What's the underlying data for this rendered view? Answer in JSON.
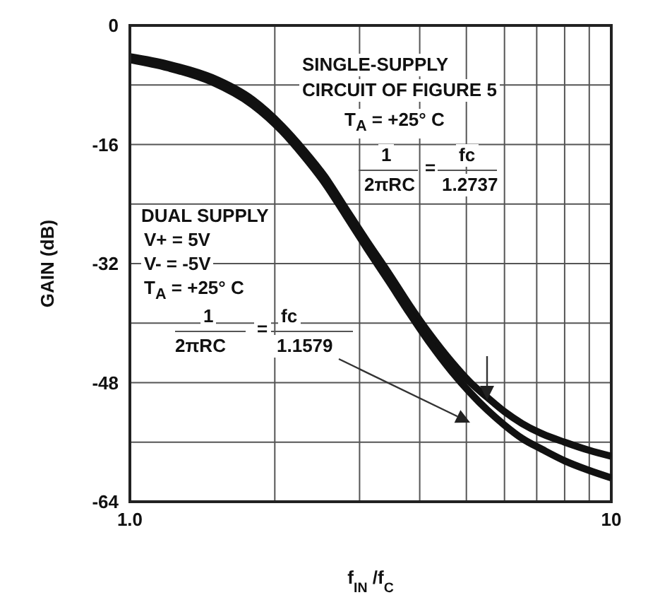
{
  "chart_data": {
    "type": "line",
    "xlabel": "f$_{IN}$/f$_{C}$",
    "ylabel": "GAIN (dB)",
    "log": "x",
    "xlim": [
      1,
      10
    ],
    "xticks": [
      {
        "value": 1,
        "label": "1.0"
      },
      {
        "value": 2,
        "label": null
      },
      {
        "value": 3,
        "label": null
      },
      {
        "value": 4,
        "label": null
      },
      {
        "value": 5,
        "label": null
      },
      {
        "value": 6,
        "label": null
      },
      {
        "value": 7,
        "label": null
      },
      {
        "value": 8,
        "label": null
      },
      {
        "value": 9,
        "label": null
      },
      10
    ],
    "ylim": [
      -64,
      0
    ],
    "yticks": [
      0,
      {
        "value": -8,
        "label": null
      },
      -16,
      {
        "value": -24,
        "label": null
      },
      -32,
      {
        "value": -40,
        "label": null
      },
      -48,
      {
        "value": -56,
        "label": null
      },
      -64
    ],
    "grid": true,
    "marker": "none",
    "line_style": "solid",
    "series": [
      {
        "color": "#111111",
        "x": [
          1,
          1.2,
          1.48,
          1.8,
          2.07,
          2.3,
          2.54,
          2.8,
          3.11,
          3.45,
          3.81,
          4.2,
          4.66,
          5.1,
          5.53,
          6,
          6.53,
          7.2,
          8,
          9,
          10
        ],
        "values": [
          -4.2,
          -5.2,
          -7,
          -10,
          -13.5,
          -16.8,
          -20.3,
          -24.5,
          -29,
          -33.3,
          -37.6,
          -41.5,
          -45.2,
          -48,
          -50,
          -51.9,
          -53.5,
          -54.9,
          -56,
          -57.1,
          -57.9
        ]
      },
      {
        "color": "#111111",
        "x": [
          1,
          1.2,
          1.48,
          1.8,
          2.07,
          2.3,
          2.54,
          2.8,
          3.11,
          3.45,
          3.81,
          4.2,
          4.66,
          5.1,
          5.53,
          6,
          6.53,
          7.2,
          8,
          9,
          10
        ],
        "values": [
          -4.6,
          -5.7,
          -7.6,
          -10.7,
          -14.2,
          -17.6,
          -21.2,
          -25.4,
          -30,
          -34.4,
          -38.7,
          -42.7,
          -46.5,
          -49.4,
          -51.7,
          -53.7,
          -55.5,
          -57,
          -58.5,
          -59.8,
          -60.8
        ]
      }
    ],
    "annotations": [
      "SINGLE-SUPPLY",
      "CIRCUIT OF FIGURE 5",
      "T$_{A}$ = +25° C",
      "1",
      "=",
      "fc",
      "2πRC",
      "1.2737",
      "DUAL SUPPLY",
      "V+ = 5V",
      "V- = -5V",
      "T$_{A}$ = +25° C",
      "1",
      "=",
      "fc",
      "2πRC",
      "1.1579"
    ]
  }
}
